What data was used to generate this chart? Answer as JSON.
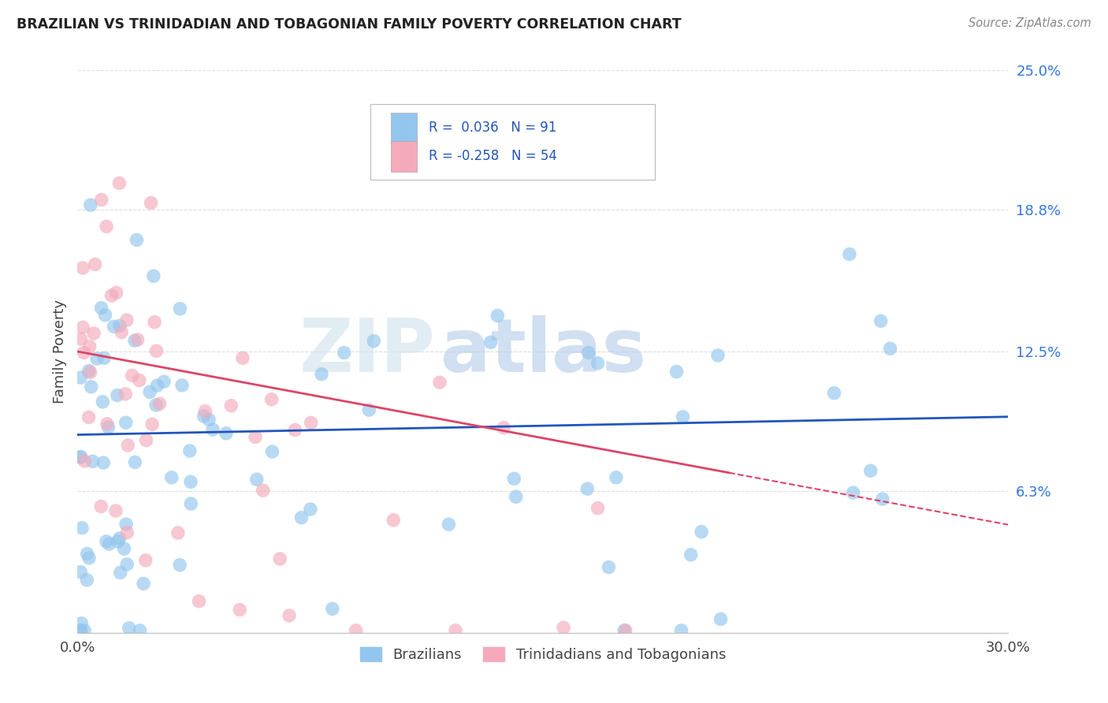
{
  "title": "BRAZILIAN VS TRINIDADIAN AND TOBAGONIAN FAMILY POVERTY CORRELATION CHART",
  "source": "Source: ZipAtlas.com",
  "ylabel": "Family Poverty",
  "xlim": [
    0,
    0.3
  ],
  "ylim": [
    0,
    0.25
  ],
  "ytick_vals": [
    0.063,
    0.125,
    0.188,
    0.25
  ],
  "ytick_labels": [
    "6.3%",
    "12.5%",
    "18.8%",
    "25.0%"
  ],
  "xtick_vals": [
    0,
    0.05,
    0.1,
    0.15,
    0.2,
    0.25,
    0.3
  ],
  "xtick_labels": [
    "0.0%",
    "",
    "",
    "",
    "",
    "",
    "30.0%"
  ],
  "label_blue": "Brazilians",
  "label_pink": "Trinidadians and Tobagonians",
  "blue_color": "#93C6EE",
  "pink_color": "#F4AABB",
  "trend_blue_color": "#2255BB",
  "trend_pink_color": "#DD4466",
  "watermark_zip": "ZIP",
  "watermark_atlas": "atlas",
  "watermark_zip_color": "#D8E8F0",
  "watermark_atlas_color": "#C8DAEE",
  "background": "#FFFFFF",
  "legend_r_blue": "R =  0.036",
  "legend_n_blue": "N = 91",
  "legend_r_pink": "R = -0.258",
  "legend_n_pink": "N = 54",
  "legend_text_color": "#2255BB",
  "legend_box_color": "#CCCCCC",
  "blue_trend_x0": 0.0,
  "blue_trend_y0": 0.088,
  "blue_trend_x1": 0.3,
  "blue_trend_y1": 0.096,
  "pink_trend_x0": 0.0,
  "pink_trend_y0": 0.125,
  "pink_trend_x1_solid": 0.21,
  "pink_trend_x1": 0.3,
  "pink_trend_y1": 0.048
}
